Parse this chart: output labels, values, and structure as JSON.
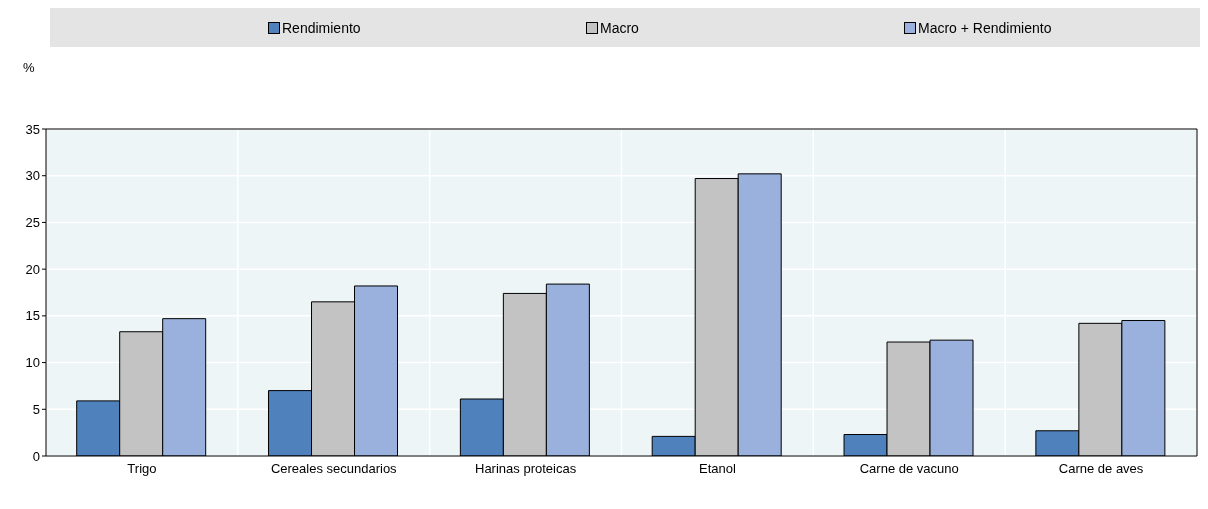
{
  "chart_data": {
    "type": "bar",
    "ylabel": "%",
    "categories": [
      "Trigo",
      "Cereales secundarios",
      "Harinas proteicas",
      "Etanol",
      "Carne de vacuno",
      "Carne de aves"
    ],
    "series": [
      {
        "name": "Rendimiento",
        "color": "#4f81bd",
        "values": [
          5.9,
          7.0,
          6.1,
          2.1,
          2.3,
          2.7
        ]
      },
      {
        "name": "Macro",
        "color": "#c2c3c2",
        "values": [
          13.3,
          16.5,
          17.4,
          29.7,
          12.2,
          14.2
        ]
      },
      {
        "name": "Macro + Rendimiento",
        "color": "#9ab1dd",
        "values": [
          14.7,
          18.2,
          18.4,
          30.2,
          12.4,
          14.5
        ]
      }
    ],
    "ylim": [
      0,
      35
    ],
    "yticks": [
      0,
      5,
      10,
      15,
      20,
      25,
      30,
      35
    ],
    "grid": true,
    "legend": "top"
  }
}
